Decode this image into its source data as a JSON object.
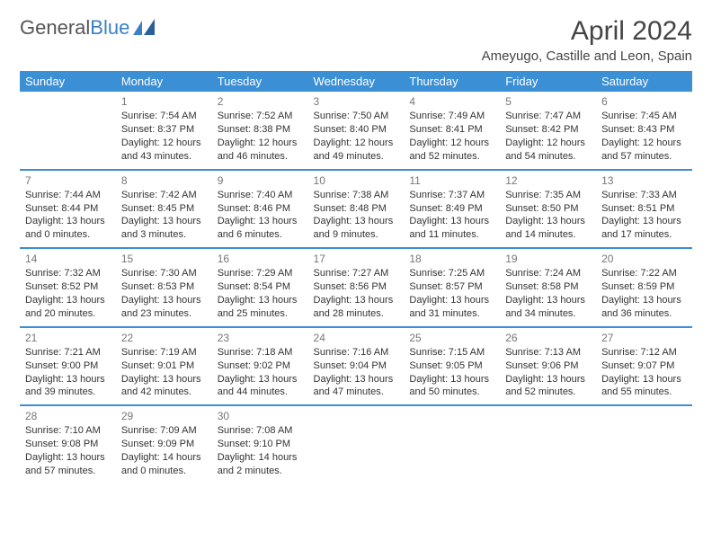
{
  "logo": {
    "text1": "General",
    "text2": "Blue"
  },
  "title": "April 2024",
  "location": "Ameyugo, Castille and Leon, Spain",
  "colors": {
    "header_bg": "#3b8fd4",
    "header_fg": "#ffffff",
    "rule": "#3b8fd4",
    "logo_blue": "#3b7fc4"
  },
  "weekdays": [
    "Sunday",
    "Monday",
    "Tuesday",
    "Wednesday",
    "Thursday",
    "Friday",
    "Saturday"
  ],
  "weeks": [
    [
      null,
      {
        "n": "1",
        "sr": "Sunrise: 7:54 AM",
        "ss": "Sunset: 8:37 PM",
        "d1": "Daylight: 12 hours",
        "d2": "and 43 minutes."
      },
      {
        "n": "2",
        "sr": "Sunrise: 7:52 AM",
        "ss": "Sunset: 8:38 PM",
        "d1": "Daylight: 12 hours",
        "d2": "and 46 minutes."
      },
      {
        "n": "3",
        "sr": "Sunrise: 7:50 AM",
        "ss": "Sunset: 8:40 PM",
        "d1": "Daylight: 12 hours",
        "d2": "and 49 minutes."
      },
      {
        "n": "4",
        "sr": "Sunrise: 7:49 AM",
        "ss": "Sunset: 8:41 PM",
        "d1": "Daylight: 12 hours",
        "d2": "and 52 minutes."
      },
      {
        "n": "5",
        "sr": "Sunrise: 7:47 AM",
        "ss": "Sunset: 8:42 PM",
        "d1": "Daylight: 12 hours",
        "d2": "and 54 minutes."
      },
      {
        "n": "6",
        "sr": "Sunrise: 7:45 AM",
        "ss": "Sunset: 8:43 PM",
        "d1": "Daylight: 12 hours",
        "d2": "and 57 minutes."
      }
    ],
    [
      {
        "n": "7",
        "sr": "Sunrise: 7:44 AM",
        "ss": "Sunset: 8:44 PM",
        "d1": "Daylight: 13 hours",
        "d2": "and 0 minutes."
      },
      {
        "n": "8",
        "sr": "Sunrise: 7:42 AM",
        "ss": "Sunset: 8:45 PM",
        "d1": "Daylight: 13 hours",
        "d2": "and 3 minutes."
      },
      {
        "n": "9",
        "sr": "Sunrise: 7:40 AM",
        "ss": "Sunset: 8:46 PM",
        "d1": "Daylight: 13 hours",
        "d2": "and 6 minutes."
      },
      {
        "n": "10",
        "sr": "Sunrise: 7:38 AM",
        "ss": "Sunset: 8:48 PM",
        "d1": "Daylight: 13 hours",
        "d2": "and 9 minutes."
      },
      {
        "n": "11",
        "sr": "Sunrise: 7:37 AM",
        "ss": "Sunset: 8:49 PM",
        "d1": "Daylight: 13 hours",
        "d2": "and 11 minutes."
      },
      {
        "n": "12",
        "sr": "Sunrise: 7:35 AM",
        "ss": "Sunset: 8:50 PM",
        "d1": "Daylight: 13 hours",
        "d2": "and 14 minutes."
      },
      {
        "n": "13",
        "sr": "Sunrise: 7:33 AM",
        "ss": "Sunset: 8:51 PM",
        "d1": "Daylight: 13 hours",
        "d2": "and 17 minutes."
      }
    ],
    [
      {
        "n": "14",
        "sr": "Sunrise: 7:32 AM",
        "ss": "Sunset: 8:52 PM",
        "d1": "Daylight: 13 hours",
        "d2": "and 20 minutes."
      },
      {
        "n": "15",
        "sr": "Sunrise: 7:30 AM",
        "ss": "Sunset: 8:53 PM",
        "d1": "Daylight: 13 hours",
        "d2": "and 23 minutes."
      },
      {
        "n": "16",
        "sr": "Sunrise: 7:29 AM",
        "ss": "Sunset: 8:54 PM",
        "d1": "Daylight: 13 hours",
        "d2": "and 25 minutes."
      },
      {
        "n": "17",
        "sr": "Sunrise: 7:27 AM",
        "ss": "Sunset: 8:56 PM",
        "d1": "Daylight: 13 hours",
        "d2": "and 28 minutes."
      },
      {
        "n": "18",
        "sr": "Sunrise: 7:25 AM",
        "ss": "Sunset: 8:57 PM",
        "d1": "Daylight: 13 hours",
        "d2": "and 31 minutes."
      },
      {
        "n": "19",
        "sr": "Sunrise: 7:24 AM",
        "ss": "Sunset: 8:58 PM",
        "d1": "Daylight: 13 hours",
        "d2": "and 34 minutes."
      },
      {
        "n": "20",
        "sr": "Sunrise: 7:22 AM",
        "ss": "Sunset: 8:59 PM",
        "d1": "Daylight: 13 hours",
        "d2": "and 36 minutes."
      }
    ],
    [
      {
        "n": "21",
        "sr": "Sunrise: 7:21 AM",
        "ss": "Sunset: 9:00 PM",
        "d1": "Daylight: 13 hours",
        "d2": "and 39 minutes."
      },
      {
        "n": "22",
        "sr": "Sunrise: 7:19 AM",
        "ss": "Sunset: 9:01 PM",
        "d1": "Daylight: 13 hours",
        "d2": "and 42 minutes."
      },
      {
        "n": "23",
        "sr": "Sunrise: 7:18 AM",
        "ss": "Sunset: 9:02 PM",
        "d1": "Daylight: 13 hours",
        "d2": "and 44 minutes."
      },
      {
        "n": "24",
        "sr": "Sunrise: 7:16 AM",
        "ss": "Sunset: 9:04 PM",
        "d1": "Daylight: 13 hours",
        "d2": "and 47 minutes."
      },
      {
        "n": "25",
        "sr": "Sunrise: 7:15 AM",
        "ss": "Sunset: 9:05 PM",
        "d1": "Daylight: 13 hours",
        "d2": "and 50 minutes."
      },
      {
        "n": "26",
        "sr": "Sunrise: 7:13 AM",
        "ss": "Sunset: 9:06 PM",
        "d1": "Daylight: 13 hours",
        "d2": "and 52 minutes."
      },
      {
        "n": "27",
        "sr": "Sunrise: 7:12 AM",
        "ss": "Sunset: 9:07 PM",
        "d1": "Daylight: 13 hours",
        "d2": "and 55 minutes."
      }
    ],
    [
      {
        "n": "28",
        "sr": "Sunrise: 7:10 AM",
        "ss": "Sunset: 9:08 PM",
        "d1": "Daylight: 13 hours",
        "d2": "and 57 minutes."
      },
      {
        "n": "29",
        "sr": "Sunrise: 7:09 AM",
        "ss": "Sunset: 9:09 PM",
        "d1": "Daylight: 14 hours",
        "d2": "and 0 minutes."
      },
      {
        "n": "30",
        "sr": "Sunrise: 7:08 AM",
        "ss": "Sunset: 9:10 PM",
        "d1": "Daylight: 14 hours",
        "d2": "and 2 minutes."
      },
      null,
      null,
      null,
      null
    ]
  ]
}
